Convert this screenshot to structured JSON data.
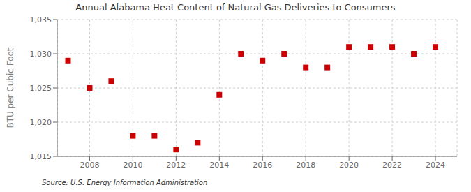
{
  "chart_data": {
    "type": "scatter",
    "title": "Annual Alabama Heat Content of Natural Gas Deliveries to Consumers",
    "ylabel": "BTU per Cubic Foot",
    "source": "Source: U.S. Energy Information Administration",
    "x": [
      2007,
      2008,
      2009,
      2010,
      2011,
      2012,
      2013,
      2014,
      2015,
      2016,
      2017,
      2018,
      2019,
      2020,
      2021,
      2022,
      2023,
      2024
    ],
    "values": [
      1029,
      1025,
      1026,
      1018,
      1018,
      1016,
      1017,
      1024,
      1030,
      1029,
      1030,
      1028,
      1028,
      1031,
      1031,
      1031,
      1030,
      1031
    ],
    "xlim": [
      2006.5,
      2025
    ],
    "xticks": [
      2008,
      2010,
      2012,
      2014,
      2016,
      2018,
      2020,
      2022,
      2024
    ],
    "ylim": [
      1015,
      1035
    ],
    "yticks": [
      {
        "value": 1015,
        "label": "1,015"
      },
      {
        "value": 1020,
        "label": "1,020"
      },
      {
        "value": 1025,
        "label": "1,025"
      },
      {
        "value": 1030,
        "label": "1,030"
      },
      {
        "value": 1035,
        "label": "1,035"
      }
    ],
    "color": "#cc0000",
    "marker": "square",
    "grid": true
  }
}
